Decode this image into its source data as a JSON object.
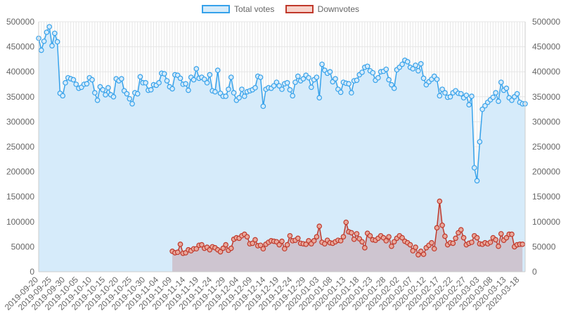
{
  "colors": {
    "total_line": "#36a2eb",
    "total_fill": "#d6ebfa",
    "down_line": "#c0392b",
    "down_fill": "#cdbec8",
    "grid": "#e6e6e6",
    "axis_text": "#666666"
  },
  "chart_data": {
    "type": "line",
    "legend_position": "top",
    "grid": true,
    "x_start": "2019-09-20",
    "x_tick_labels": [
      "2019-09-20",
      "2019-09-25",
      "2019-09-30",
      "2019-10-05",
      "2019-10-10",
      "2019-10-15",
      "2019-10-20",
      "2019-10-25",
      "2019-10-30",
      "2019-11-04",
      "2019-11-09",
      "2019-11-14",
      "2019-11-19",
      "2019-11-24",
      "2019-11-29",
      "2019-12-04",
      "2019-12-09",
      "2019-12-14",
      "2019-12-19",
      "2019-12-24",
      "2019-12-29",
      "2020-01-03",
      "2020-01-08",
      "2020-01-13",
      "2020-01-18",
      "2020-01-23",
      "2020-01-28",
      "2020-02-02",
      "2020-02-07",
      "2020-02-12",
      "2020-02-17",
      "2020-02-22",
      "2020-02-27",
      "2020-03-03",
      "2020-03-08",
      "2020-03-13",
      "2020-03-18"
    ],
    "y_ticks": [
      0,
      50000,
      100000,
      150000,
      200000,
      250000,
      300000,
      350000,
      400000,
      450000,
      500000
    ],
    "ylim": [
      0,
      500000
    ],
    "series": [
      {
        "name": "Total votes",
        "start_date": "2019-09-20",
        "values": [
          467000,
          443000,
          461000,
          479000,
          490000,
          452000,
          477000,
          460000,
          357000,
          352000,
          378000,
          388000,
          386000,
          384000,
          375000,
          367000,
          369000,
          375000,
          376000,
          388000,
          384000,
          358000,
          343000,
          370000,
          364000,
          354000,
          368000,
          354000,
          350000,
          386000,
          382000,
          386000,
          362000,
          356000,
          346000,
          336000,
          358000,
          356000,
          390000,
          378000,
          378000,
          363000,
          364000,
          374000,
          373000,
          378000,
          397000,
          396000,
          382000,
          370000,
          366000,
          394000,
          393000,
          387000,
          375000,
          376000,
          363000,
          389000,
          384000,
          406000,
          387000,
          389000,
          385000,
          378000,
          394000,
          362000,
          360000,
          403000,
          357000,
          351000,
          351000,
          365000,
          389000,
          358000,
          343000,
          348000,
          365000,
          351000,
          360000,
          362000,
          364000,
          368000,
          391000,
          389000,
          331000,
          365000,
          368000,
          367000,
          372000,
          379000,
          372000,
          365000,
          376000,
          378000,
          364000,
          352000,
          379000,
          391000,
          382000,
          386000,
          393000,
          388000,
          369000,
          384000,
          389000,
          348000,
          415000,
          403000,
          397000,
          400000,
          380000,
          386000,
          365000,
          359000,
          379000,
          377000,
          376000,
          358000,
          382000,
          383000,
          394000,
          399000,
          409000,
          411000,
          402000,
          398000,
          383000,
          388000,
          400000,
          401000,
          405000,
          384000,
          374000,
          367000,
          404000,
          409000,
          415000,
          423000,
          420000,
          409000,
          406000,
          413000,
          402000,
          416000,
          387000,
          374000,
          380000,
          385000,
          391000,
          385000,
          352000,
          365000,
          358000,
          349000,
          350000,
          358000,
          362000,
          357000,
          356000,
          348000,
          353000,
          334000,
          351000,
          208000,
          182000,
          260000,
          325000,
          332000,
          339000,
          344000,
          349000,
          358000,
          341000,
          379000,
          363000,
          367000,
          348000,
          343000,
          350000,
          356000,
          339000,
          336000,
          336000
        ]
      },
      {
        "name": "Downvotes",
        "start_date": "2019-11-09",
        "values": [
          41000,
          38000,
          39000,
          55000,
          37000,
          38000,
          44000,
          42000,
          46000,
          46000,
          53000,
          54000,
          47000,
          49000,
          44000,
          50000,
          48000,
          44000,
          40000,
          47000,
          54000,
          43000,
          47000,
          65000,
          68000,
          67000,
          72000,
          75000,
          70000,
          56000,
          57000,
          64000,
          52000,
          53000,
          46000,
          55000,
          59000,
          62000,
          61000,
          60000,
          54000,
          61000,
          46000,
          54000,
          72000,
          62000,
          63000,
          67000,
          57000,
          56000,
          55000,
          62000,
          56000,
          62000,
          70000,
          91000,
          59000,
          56000,
          63000,
          58000,
          57000,
          60000,
          63000,
          62000,
          70000,
          99000,
          80000,
          78000,
          65000,
          76000,
          66000,
          60000,
          48000,
          77000,
          72000,
          64000,
          63000,
          67000,
          72000,
          68000,
          62000,
          70000,
          51000,
          60000,
          67000,
          72000,
          68000,
          61000,
          58000,
          54000,
          42000,
          49000,
          34000,
          41000,
          35000,
          48000,
          53000,
          58000,
          46000,
          88000,
          141000,
          93000,
          71000,
          54000,
          58000,
          57000,
          67000,
          78000,
          84000,
          68000,
          54000,
          57000,
          59000,
          72000,
          68000,
          56000,
          55000,
          58000,
          56000,
          59000,
          68000,
          64000,
          51000,
          76000,
          63000,
          68000,
          75000,
          75000,
          50000,
          54000,
          55000,
          55000
        ]
      }
    ]
  }
}
